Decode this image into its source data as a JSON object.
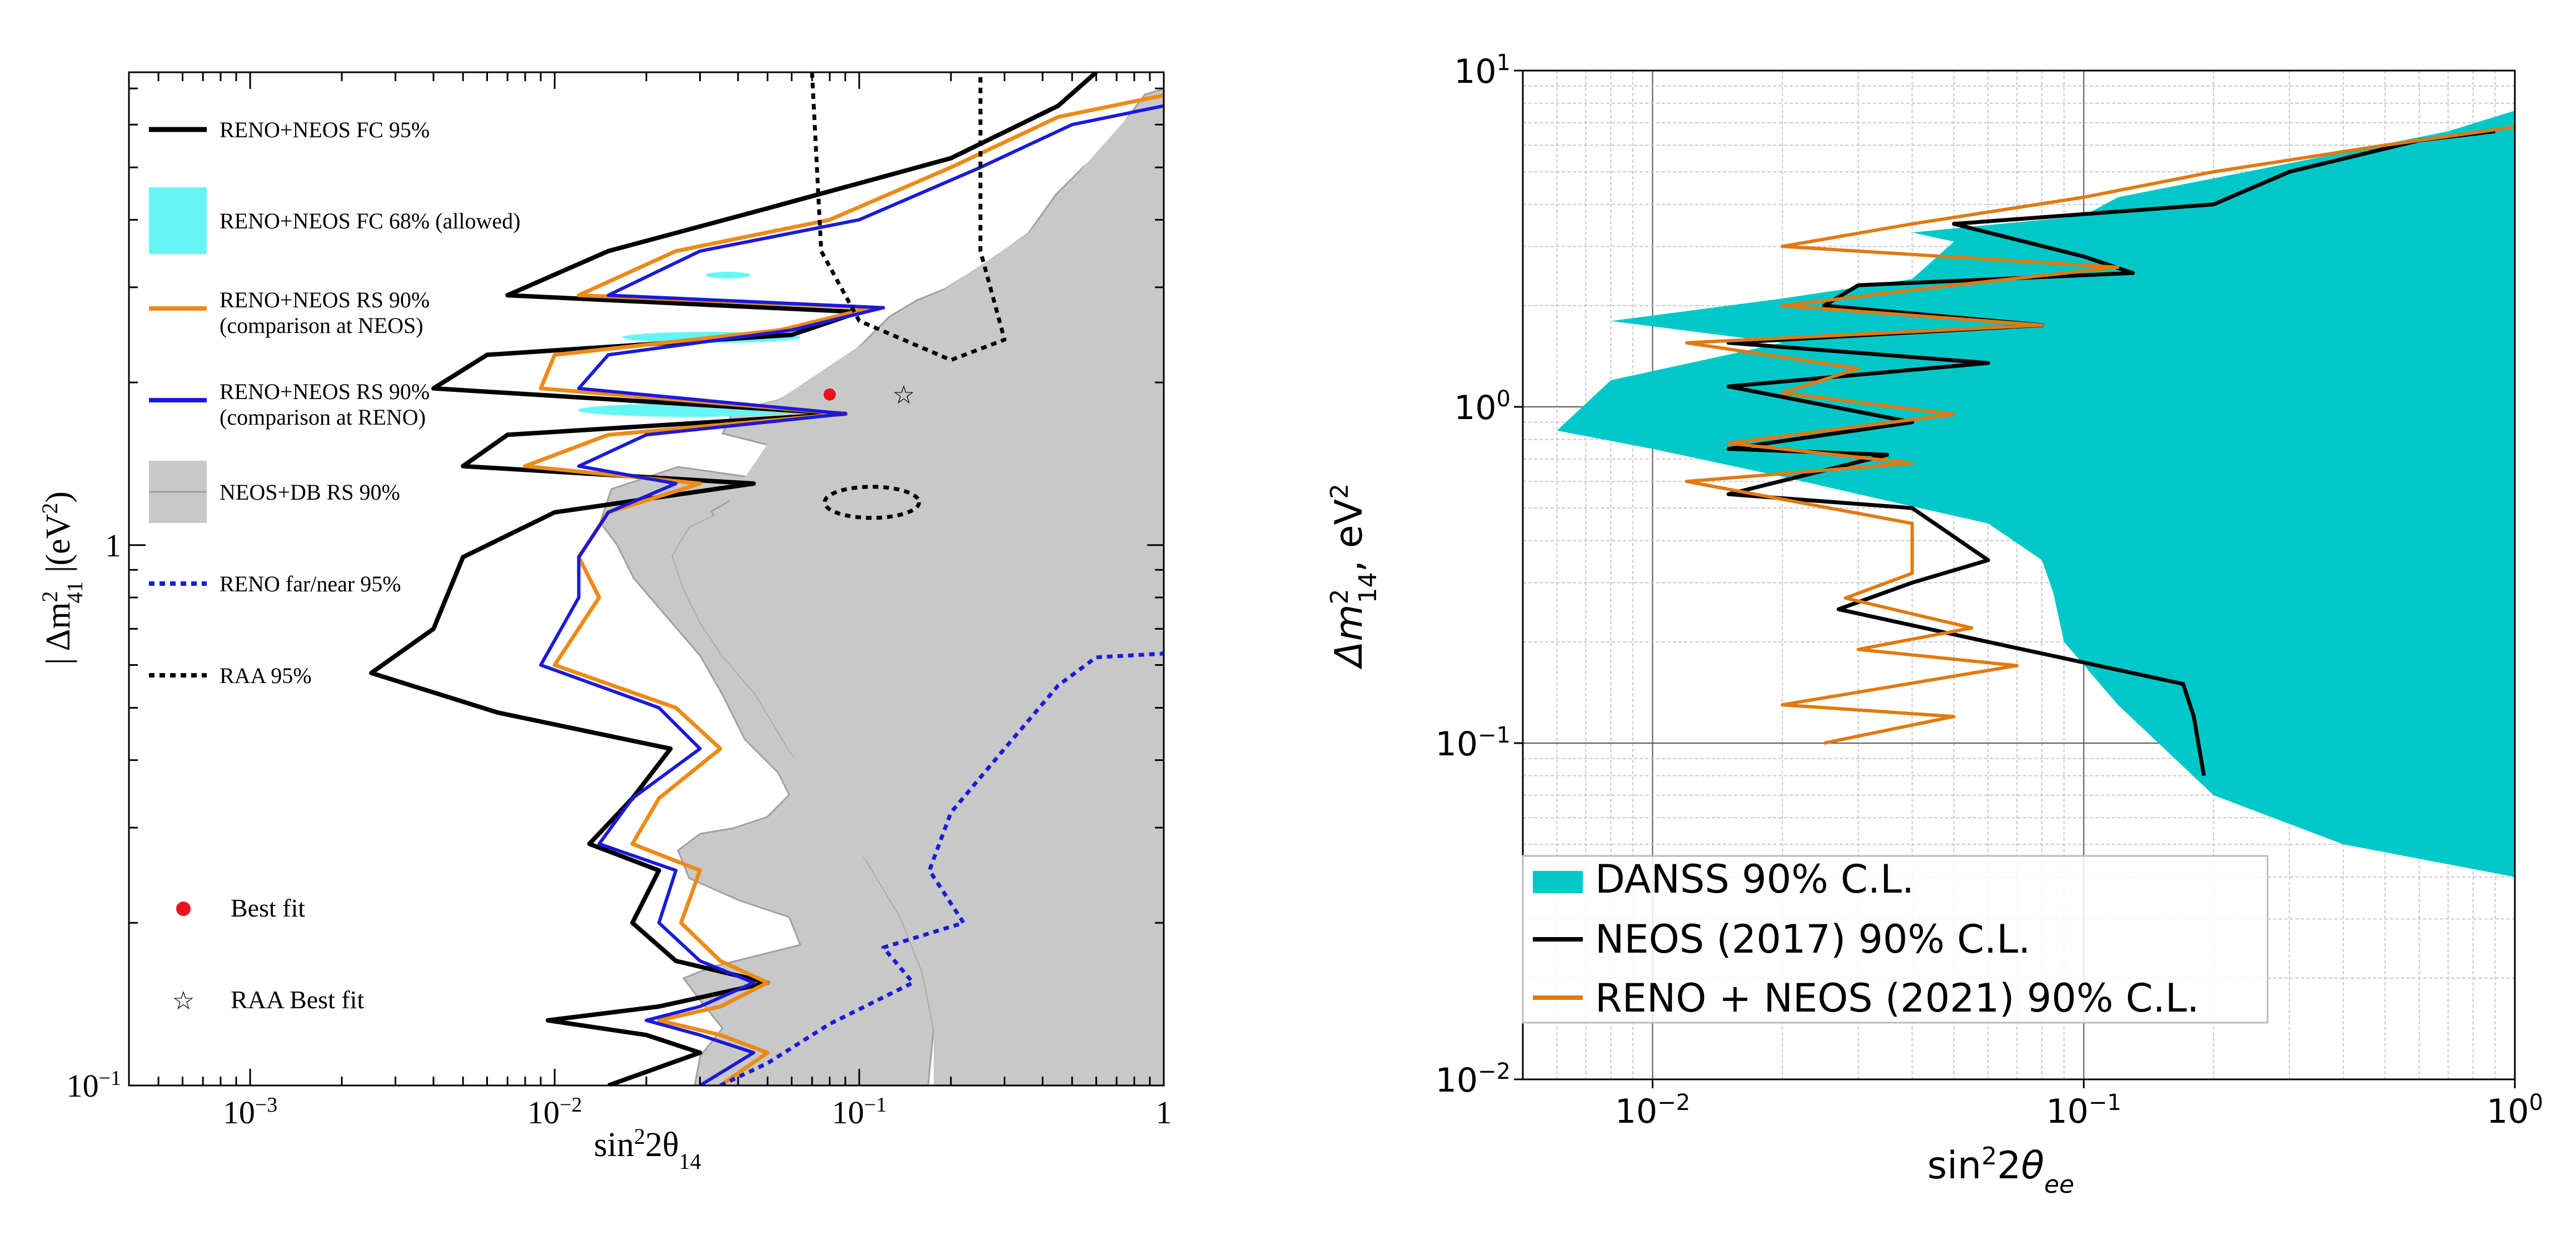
{
  "chart_data": [
    {
      "type": "line",
      "title": "",
      "xlabel": "sin²2θ₁₄",
      "ylabel": "|Δm²₄₁| (eV²)",
      "xscale": "log",
      "yscale": "log",
      "xlim": [
        0.0004,
        1
      ],
      "ylim": [
        0.1,
        7.5
      ],
      "x_tick_labels": [
        {
          "value": 0.001,
          "label": "10",
          "exp": "−3"
        },
        {
          "value": 0.01,
          "label": "10",
          "exp": "−2"
        },
        {
          "value": 0.1,
          "label": "10",
          "exp": "−1"
        },
        {
          "value": 1,
          "label": "1",
          "exp": ""
        }
      ],
      "y_tick_labels": [
        {
          "value": 0.1,
          "label": "10",
          "exp": "−1"
        },
        {
          "value": 1,
          "label": "1",
          "exp": ""
        }
      ],
      "legend": {
        "placement": "left",
        "entries": [
          {
            "label": "RENO+NEOS FC 95%",
            "label2": "",
            "style": "solid-black"
          },
          {
            "label": "RENO+NEOS FC 68% (allowed)",
            "label2": "",
            "style": "cyan-fill"
          },
          {
            "label": "RENO+NEOS RS 90%",
            "label2": "(comparison at NEOS)",
            "style": "solid-orange"
          },
          {
            "label": "RENO+NEOS RS 90%",
            "label2": "(comparison at RENO)",
            "style": "solid-blue"
          },
          {
            "label": "NEOS+DB RS 90%",
            "label2": "",
            "style": "gray-fill"
          },
          {
            "label": "RENO far/near 95%",
            "label2": "",
            "style": "dotted-blue"
          },
          {
            "label": "RAA 95%",
            "label2": "",
            "style": "dotted-black"
          },
          {
            "label": "Best fit",
            "label2": "",
            "style": "red-dot"
          },
          {
            "label": "RAA Best fit",
            "label2": "",
            "style": "star"
          }
        ]
      },
      "series": [
        {
          "name": "RENO+NEOS FC 95%",
          "color": "#000000",
          "points": [
            [
              0.6,
              7.5
            ],
            [
              0.45,
              6.5
            ],
            [
              0.2,
              5.2
            ],
            [
              0.05,
              4.2
            ],
            [
              0.015,
              3.5
            ],
            [
              0.007,
              2.9
            ],
            [
              0.1,
              2.7
            ],
            [
              0.06,
              2.45
            ],
            [
              0.006,
              2.25
            ],
            [
              0.004,
              1.95
            ],
            [
              0.09,
              1.75
            ],
            [
              0.007,
              1.6
            ],
            [
              0.005,
              1.4
            ],
            [
              0.045,
              1.3
            ],
            [
              0.01,
              1.15
            ],
            [
              0.005,
              0.95
            ],
            [
              0.004,
              0.7
            ],
            [
              0.0025,
              0.58
            ],
            [
              0.0065,
              0.49
            ],
            [
              0.024,
              0.42
            ],
            [
              0.018,
              0.34
            ],
            [
              0.013,
              0.28
            ],
            [
              0.022,
              0.25
            ],
            [
              0.018,
              0.2
            ],
            [
              0.025,
              0.17
            ],
            [
              0.05,
              0.155
            ],
            [
              0.022,
              0.14
            ],
            [
              0.0095,
              0.132
            ],
            [
              0.02,
              0.124
            ],
            [
              0.03,
              0.115
            ],
            [
              0.015,
              0.1
            ]
          ]
        },
        {
          "name": "RENO+NEOS RS 90% (comparison at NEOS)",
          "color": "#ED8A18",
          "points": [
            [
              1.0,
              6.8
            ],
            [
              0.45,
              6.2
            ],
            [
              0.2,
              5.0
            ],
            [
              0.08,
              4.0
            ],
            [
              0.025,
              3.5
            ],
            [
              0.012,
              2.9
            ],
            [
              0.11,
              2.75
            ],
            [
              0.055,
              2.5
            ],
            [
              0.01,
              2.25
            ],
            [
              0.009,
              1.95
            ],
            [
              0.09,
              1.75
            ],
            [
              0.015,
              1.6
            ],
            [
              0.008,
              1.4
            ],
            [
              0.03,
              1.3
            ],
            [
              0.015,
              1.15
            ],
            [
              0.012,
              0.95
            ],
            [
              0.014,
              0.8
            ],
            [
              0.01,
              0.6
            ],
            [
              0.025,
              0.5
            ],
            [
              0.035,
              0.42
            ],
            [
              0.022,
              0.34
            ],
            [
              0.018,
              0.28
            ],
            [
              0.03,
              0.25
            ],
            [
              0.026,
              0.2
            ],
            [
              0.035,
              0.17
            ],
            [
              0.05,
              0.155
            ],
            [
              0.035,
              0.14
            ],
            [
              0.022,
              0.132
            ],
            [
              0.035,
              0.124
            ],
            [
              0.05,
              0.115
            ],
            [
              0.035,
              0.1
            ]
          ]
        },
        {
          "name": "RENO+NEOS RS 90% (comparison at RENO)",
          "color": "#1A1ADB",
          "points": [
            [
              1.0,
              6.5
            ],
            [
              0.5,
              6.0
            ],
            [
              0.25,
              5.0
            ],
            [
              0.1,
              4.0
            ],
            [
              0.03,
              3.5
            ],
            [
              0.015,
              2.9
            ],
            [
              0.12,
              2.75
            ],
            [
              0.06,
              2.5
            ],
            [
              0.015,
              2.25
            ],
            [
              0.012,
              1.95
            ],
            [
              0.09,
              1.75
            ],
            [
              0.02,
              1.6
            ],
            [
              0.012,
              1.4
            ],
            [
              0.025,
              1.3
            ],
            [
              0.015,
              1.15
            ],
            [
              0.012,
              0.95
            ],
            [
              0.012,
              0.8
            ],
            [
              0.009,
              0.6
            ],
            [
              0.022,
              0.5
            ],
            [
              0.03,
              0.42
            ],
            [
              0.018,
              0.34
            ],
            [
              0.014,
              0.28
            ],
            [
              0.025,
              0.25
            ],
            [
              0.022,
              0.2
            ],
            [
              0.03,
              0.17
            ],
            [
              0.045,
              0.155
            ],
            [
              0.03,
              0.14
            ],
            [
              0.02,
              0.132
            ],
            [
              0.03,
              0.124
            ],
            [
              0.045,
              0.115
            ],
            [
              0.03,
              0.1
            ]
          ]
        },
        {
          "name": "RENO far/near 95%",
          "color": "#1A1ADB",
          "points": [
            [
              0.035,
              0.1
            ],
            [
              0.05,
              0.11
            ],
            [
              0.08,
              0.13
            ],
            [
              0.15,
              0.155
            ],
            [
              0.12,
              0.18
            ],
            [
              0.22,
              0.2
            ],
            [
              0.17,
              0.25
            ],
            [
              0.2,
              0.32
            ],
            [
              0.3,
              0.42
            ],
            [
              0.45,
              0.55
            ],
            [
              0.6,
              0.62
            ],
            [
              1.0,
              0.63
            ]
          ]
        },
        {
          "name": "RAA 95%",
          "color": "#000000",
          "points": [
            [
              0.07,
              7.5
            ],
            [
              0.075,
              3.5
            ],
            [
              0.1,
              2.6
            ],
            [
              0.2,
              2.2
            ],
            [
              0.3,
              2.4
            ],
            [
              0.25,
              3.5
            ],
            [
              0.25,
              7.5
            ]
          ]
        }
      ],
      "best_fit": {
        "x": 0.08,
        "y": 1.9
      },
      "raa_best_fit": {
        "x": 0.14,
        "y": 1.9
      }
    },
    {
      "type": "area",
      "title": "",
      "xlabel": "sin²2θee",
      "ylabel": "Δm²₁₄, eV²",
      "xscale": "log",
      "yscale": "log",
      "xlim": [
        0.005,
        1
      ],
      "ylim": [
        0.01,
        10
      ],
      "x_tick_labels": [
        {
          "value": 0.01,
          "label": "10",
          "exp": "−2"
        },
        {
          "value": 0.1,
          "label": "10",
          "exp": "−1"
        },
        {
          "value": 1,
          "label": "10",
          "exp": "0"
        }
      ],
      "y_tick_labels": [
        {
          "value": 0.01,
          "label": "10",
          "exp": "−2"
        },
        {
          "value": 0.1,
          "label": "10",
          "exp": "−1"
        },
        {
          "value": 1,
          "label": "10",
          "exp": "0"
        },
        {
          "value": 10,
          "label": "10",
          "exp": "1"
        }
      ],
      "grid": true,
      "legend": {
        "placement": "bottom-left",
        "entries": [
          {
            "label": "DANSS 90% C.L.",
            "style": "cyan-fill"
          },
          {
            "label": "NEOS (2017) 90% C.L.",
            "style": "solid-black"
          },
          {
            "label": "RENO + NEOS (2021) 90% C.L.",
            "style": "solid-orange"
          }
        ]
      },
      "series": [
        {
          "name": "DANSS 90% C.L.",
          "color": "#00C8C8",
          "points": [
            [
              0.006,
              0.85
            ],
            [
              0.008,
              1.2
            ],
            [
              0.02,
              1.55
            ],
            [
              0.008,
              1.8
            ],
            [
              0.02,
              2.1
            ],
            [
              0.04,
              2.4
            ],
            [
              0.05,
              3.1
            ],
            [
              0.04,
              3.3
            ],
            [
              0.1,
              3.7
            ],
            [
              0.12,
              4.2
            ],
            [
              0.3,
              5.3
            ],
            [
              0.7,
              6.6
            ],
            [
              1.0,
              7.6
            ],
            [
              1.0,
              0.04
            ],
            [
              0.4,
              0.05
            ],
            [
              0.2,
              0.07
            ],
            [
              0.12,
              0.13
            ],
            [
              0.09,
              0.2
            ],
            [
              0.085,
              0.28
            ],
            [
              0.08,
              0.35
            ],
            [
              0.06,
              0.45
            ],
            [
              0.03,
              0.55
            ],
            [
              0.02,
              0.62
            ],
            [
              0.01,
              0.75
            ],
            [
              0.006,
              0.85
            ]
          ]
        },
        {
          "name": "NEOS (2017) 90% C.L.",
          "color": "#000000",
          "points": [
            [
              0.9,
              6.6
            ],
            [
              0.6,
              6.2
            ],
            [
              0.3,
              5.0
            ],
            [
              0.2,
              4.0
            ],
            [
              0.05,
              3.5
            ],
            [
              0.1,
              2.8
            ],
            [
              0.13,
              2.5
            ],
            [
              0.03,
              2.3
            ],
            [
              0.025,
              2.0
            ],
            [
              0.08,
              1.75
            ],
            [
              0.015,
              1.55
            ],
            [
              0.06,
              1.35
            ],
            [
              0.015,
              1.15
            ],
            [
              0.04,
              0.9
            ],
            [
              0.015,
              0.75
            ],
            [
              0.035,
              0.72
            ],
            [
              0.015,
              0.55
            ],
            [
              0.04,
              0.5
            ],
            [
              0.06,
              0.35
            ],
            [
              0.04,
              0.3
            ],
            [
              0.027,
              0.25
            ],
            [
              0.06,
              0.2
            ],
            [
              0.17,
              0.15
            ],
            [
              0.18,
              0.12
            ],
            [
              0.19,
              0.08
            ]
          ]
        },
        {
          "name": "RENO + NEOS (2021) 90% C.L.",
          "color": "#E07A10",
          "points": [
            [
              1.0,
              6.8
            ],
            [
              0.5,
              6.0
            ],
            [
              0.2,
              5.0
            ],
            [
              0.1,
              4.2
            ],
            [
              0.04,
              3.5
            ],
            [
              0.02,
              3.0
            ],
            [
              0.12,
              2.6
            ],
            [
              0.05,
              2.3
            ],
            [
              0.02,
              2.0
            ],
            [
              0.08,
              1.75
            ],
            [
              0.012,
              1.55
            ],
            [
              0.03,
              1.3
            ],
            [
              0.02,
              1.1
            ],
            [
              0.05,
              0.95
            ],
            [
              0.015,
              0.78
            ],
            [
              0.04,
              0.68
            ],
            [
              0.012,
              0.6
            ],
            [
              0.04,
              0.45
            ],
            [
              0.04,
              0.32
            ],
            [
              0.028,
              0.27
            ],
            [
              0.055,
              0.22
            ],
            [
              0.03,
              0.19
            ],
            [
              0.07,
              0.17
            ],
            [
              0.02,
              0.13
            ],
            [
              0.05,
              0.12
            ],
            [
              0.025,
              0.1
            ]
          ]
        }
      ]
    }
  ]
}
